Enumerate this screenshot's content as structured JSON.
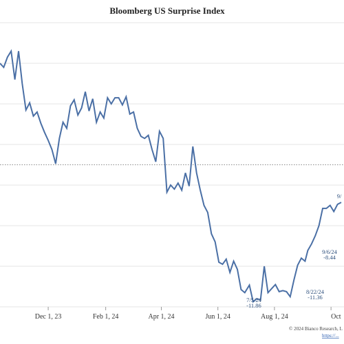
{
  "chart_data": {
    "type": "line",
    "title": "Bloomberg US Surprise Index",
    "x_tick_labels": [
      "Dec 1, 23",
      "Feb 1, 24",
      "Apr 1, 24",
      "Jun 1, 24",
      "Aug 1, 24",
      "Oct"
    ],
    "x_tick_dates": [
      "2023-12-01",
      "2024-02-01",
      "2024-04-01",
      "2024-06-01",
      "2024-08-01",
      "2024-10-01"
    ],
    "xlim": [
      "2023-10-10",
      "2024-10-15"
    ],
    "ylim": [
      -14,
      14
    ],
    "y_tick_labels_visible": false,
    "zero_line": {
      "value": 0,
      "style": "dotted"
    },
    "grid": {
      "horizontal": true,
      "vertical": false
    },
    "series": [
      {
        "color": "#4a6fa5",
        "points": [
          [
            "2023-10-10",
            10.0
          ],
          [
            "2023-10-14",
            9.6
          ],
          [
            "2023-10-18",
            10.6
          ],
          [
            "2023-10-22",
            11.2
          ],
          [
            "2023-10-26",
            8.4
          ],
          [
            "2023-10-30",
            11.2
          ],
          [
            "2023-11-03",
            8.0
          ],
          [
            "2023-11-07",
            5.4
          ],
          [
            "2023-11-11",
            6.1
          ],
          [
            "2023-11-15",
            4.8
          ],
          [
            "2023-11-19",
            5.2
          ],
          [
            "2023-11-23",
            4.1
          ],
          [
            "2023-11-27",
            3.2
          ],
          [
            "2023-12-01",
            2.4
          ],
          [
            "2023-12-05",
            1.5
          ],
          [
            "2023-12-09",
            0.1
          ],
          [
            "2023-12-13",
            2.6
          ],
          [
            "2023-12-17",
            4.2
          ],
          [
            "2023-12-21",
            3.6
          ],
          [
            "2023-12-25",
            5.8
          ],
          [
            "2023-12-29",
            6.4
          ],
          [
            "2024-01-02",
            4.9
          ],
          [
            "2024-01-06",
            5.6
          ],
          [
            "2024-01-10",
            7.2
          ],
          [
            "2024-01-14",
            5.3
          ],
          [
            "2024-01-18",
            6.5
          ],
          [
            "2024-01-22",
            4.2
          ],
          [
            "2024-01-26",
            5.2
          ],
          [
            "2024-01-30",
            4.6
          ],
          [
            "2024-02-03",
            6.6
          ],
          [
            "2024-02-07",
            6.0
          ],
          [
            "2024-02-11",
            6.6
          ],
          [
            "2024-02-15",
            6.6
          ],
          [
            "2024-02-19",
            5.9
          ],
          [
            "2024-02-23",
            6.7
          ],
          [
            "2024-02-27",
            5.0
          ],
          [
            "2024-03-02",
            5.2
          ],
          [
            "2024-03-06",
            3.6
          ],
          [
            "2024-03-10",
            2.8
          ],
          [
            "2024-03-14",
            2.6
          ],
          [
            "2024-03-18",
            2.9
          ],
          [
            "2024-03-22",
            1.5
          ],
          [
            "2024-03-26",
            0.3
          ],
          [
            "2024-03-30",
            3.3
          ],
          [
            "2024-04-03",
            2.6
          ],
          [
            "2024-04-07",
            -2.7
          ],
          [
            "2024-04-11",
            -2.0
          ],
          [
            "2024-04-15",
            -2.4
          ],
          [
            "2024-04-19",
            -1.8
          ],
          [
            "2024-04-23",
            -2.5
          ],
          [
            "2024-04-27",
            -0.8
          ],
          [
            "2024-05-01",
            -2.1
          ],
          [
            "2024-05-05",
            1.8
          ],
          [
            "2024-05-09",
            -0.8
          ],
          [
            "2024-05-13",
            -2.5
          ],
          [
            "2024-05-17",
            -4.0
          ],
          [
            "2024-05-21",
            -4.7
          ],
          [
            "2024-05-25",
            -6.8
          ],
          [
            "2024-05-29",
            -7.6
          ],
          [
            "2024-06-02",
            -9.6
          ],
          [
            "2024-06-06",
            -9.8
          ],
          [
            "2024-06-10",
            -9.3
          ],
          [
            "2024-06-14",
            -10.6
          ],
          [
            "2024-06-18",
            -9.5
          ],
          [
            "2024-06-22",
            -10.3
          ],
          [
            "2024-06-26",
            -12.3
          ],
          [
            "2024-06-30",
            -12.6
          ],
          [
            "2024-07-05",
            -11.86
          ],
          [
            "2024-07-09",
            -13.5
          ],
          [
            "2024-07-13",
            -13.2
          ],
          [
            "2024-07-17",
            -13.3
          ],
          [
            "2024-07-21",
            -10.0
          ],
          [
            "2024-07-25",
            -12.6
          ],
          [
            "2024-07-29",
            -12.2
          ],
          [
            "2024-08-02",
            -11.8
          ],
          [
            "2024-08-06",
            -12.5
          ],
          [
            "2024-08-10",
            -12.4
          ],
          [
            "2024-08-14",
            -12.5
          ],
          [
            "2024-08-18",
            -13.0
          ],
          [
            "2024-08-22",
            -11.36
          ],
          [
            "2024-08-26",
            -9.9
          ],
          [
            "2024-08-30",
            -9.2
          ],
          [
            "2024-09-03",
            -9.5
          ],
          [
            "2024-09-06",
            -8.44
          ],
          [
            "2024-09-10",
            -7.8
          ],
          [
            "2024-09-14",
            -7.0
          ],
          [
            "2024-09-18",
            -6.0
          ],
          [
            "2024-09-22",
            -4.3
          ],
          [
            "2024-09-26",
            -4.3
          ],
          [
            "2024-09-30",
            -4.0
          ],
          [
            "2024-10-04",
            -4.6
          ],
          [
            "2024-10-08",
            -3.9
          ],
          [
            "2024-10-12",
            -3.7
          ]
        ]
      }
    ],
    "annotations": [
      {
        "date_label": "7/5/24",
        "value_label": "-11.86"
      },
      {
        "date_label": "8/22/24",
        "value_label": "-11.36"
      },
      {
        "date_label": "9/6/24",
        "value_label": "-8.44"
      },
      {
        "date_label": "9/"
      }
    ],
    "footer": {
      "copyright": "© 2024 Bianco Research, L",
      "link_text": "https://..."
    }
  }
}
